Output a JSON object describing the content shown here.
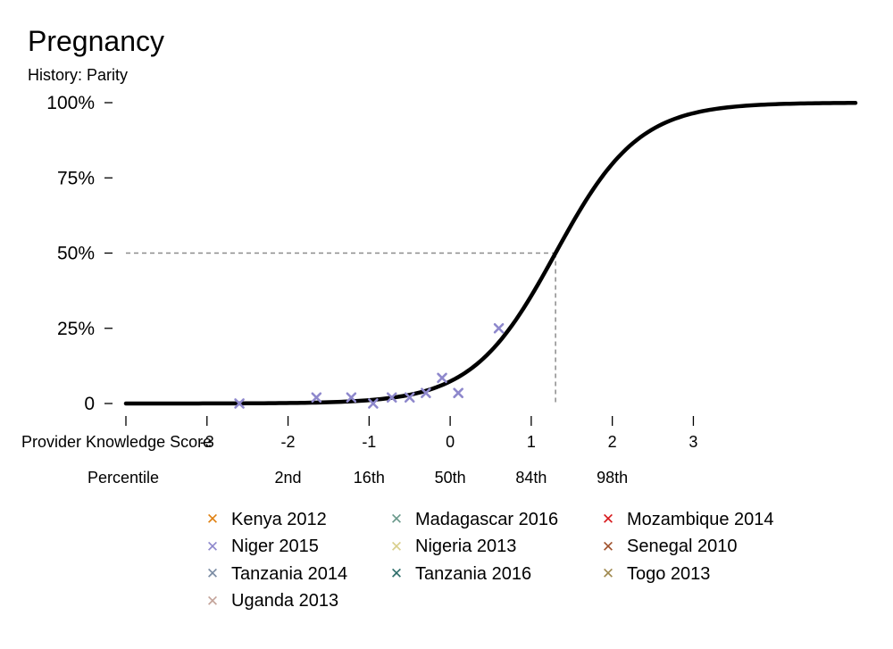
{
  "title": "Pregnancy",
  "subtitle": "History: Parity",
  "chart_data": {
    "type": "scatter",
    "title": "Pregnancy",
    "subtitle": "History: Parity",
    "xlabel": "Provider Knowledge Score",
    "ylabel": "",
    "x_secondary_label": "Percentile",
    "xlim": [
      -4,
      5
    ],
    "ylim": [
      0,
      1
    ],
    "x_ticks": [
      -3,
      -2,
      -1,
      0,
      1,
      2,
      3
    ],
    "x_tick_labels": [
      "-3",
      "-2",
      "-1",
      "0",
      "1",
      "2",
      "3"
    ],
    "percentile_ticks": [
      {
        "x": -2,
        "label": "2nd"
      },
      {
        "x": -1,
        "label": "16th"
      },
      {
        "x": 0,
        "label": "50th"
      },
      {
        "x": 1,
        "label": "84th"
      },
      {
        "x": 2,
        "label": "98th"
      }
    ],
    "y_ticks": [
      0,
      0.25,
      0.5,
      0.75,
      1
    ],
    "y_tick_labels": [
      "0",
      "25%",
      "50%",
      "75%",
      "100%"
    ],
    "curve": {
      "type": "logistic",
      "midpoint_x": 1.3,
      "slope": 1.95,
      "color": "#000000"
    },
    "reference_lines": {
      "y": 0.5,
      "x": 1.3,
      "style": "dashed",
      "color": "#8c8c8c"
    },
    "grid": false,
    "legend_position": "bottom",
    "series": [
      {
        "name": "Kenya 2012",
        "color": "#e08214",
        "points": []
      },
      {
        "name": "Madagascar 2016",
        "color": "#6b9a8c",
        "points": []
      },
      {
        "name": "Mozambique 2014",
        "color": "#d7191c",
        "points": []
      },
      {
        "name": "Niger 2015",
        "color": "#8e88cc",
        "points": [
          {
            "x": -2.6,
            "y": 0.0
          },
          {
            "x": -1.65,
            "y": 0.02
          },
          {
            "x": -1.22,
            "y": 0.02
          },
          {
            "x": -0.95,
            "y": 0.0
          },
          {
            "x": -0.72,
            "y": 0.02
          },
          {
            "x": -0.5,
            "y": 0.02
          },
          {
            "x": -0.3,
            "y": 0.035
          },
          {
            "x": -0.1,
            "y": 0.085
          },
          {
            "x": 0.1,
            "y": 0.035
          },
          {
            "x": 0.6,
            "y": 0.25
          }
        ]
      },
      {
        "name": "Nigeria 2013",
        "color": "#d9cf8c",
        "points": []
      },
      {
        "name": "Senegal 2010",
        "color": "#a0522d",
        "points": []
      },
      {
        "name": "Tanzania 2014",
        "color": "#7a8ba3",
        "points": []
      },
      {
        "name": "Tanzania 2016",
        "color": "#2e6e6a",
        "points": []
      },
      {
        "name": "Togo 2013",
        "color": "#a08a50",
        "points": []
      },
      {
        "name": "Uganda 2013",
        "color": "#c4a49a",
        "points": []
      }
    ]
  }
}
